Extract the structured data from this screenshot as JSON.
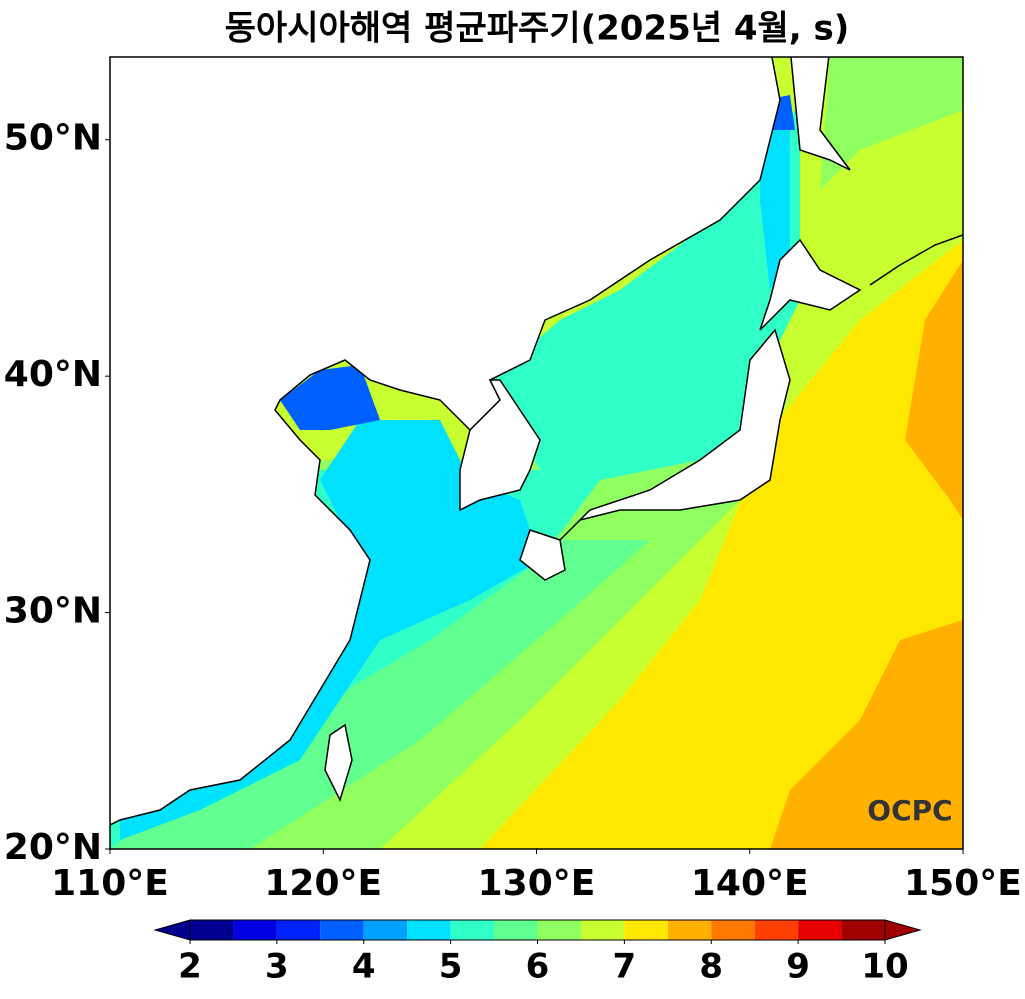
{
  "chart_data": {
    "type": "contourf",
    "title": "동아시아해역 평균파주기(2025년 4월, s)",
    "xlim": [
      110,
      150
    ],
    "ylim": [
      20,
      53.5
    ],
    "xticks": [
      {
        "value": 110,
        "label": "110°E"
      },
      {
        "value": 120,
        "label": "120°E"
      },
      {
        "value": 130,
        "label": "130°E"
      },
      {
        "value": 140,
        "label": "140°E"
      },
      {
        "value": 150,
        "label": "150°E"
      }
    ],
    "yticks": [
      {
        "value": 20,
        "label": "20°N"
      },
      {
        "value": 30,
        "label": "30°N"
      },
      {
        "value": 40,
        "label": "40°N"
      },
      {
        "value": 50,
        "label": "50°N"
      }
    ],
    "colorbar": {
      "levels": [
        2,
        2.5,
        3,
        3.5,
        4,
        4.5,
        5,
        5.5,
        6,
        6.5,
        7,
        7.5,
        8,
        8.5,
        9,
        9.5,
        10
      ],
      "colors": [
        "#000090",
        "#0000e0",
        "#0022ff",
        "#0060ff",
        "#00a0ff",
        "#00e0ff",
        "#30ffc8",
        "#60ff90",
        "#90ff60",
        "#c8ff30",
        "#ffe800",
        "#ffb000",
        "#ff7800",
        "#ff4000",
        "#e80000",
        "#a00000"
      ],
      "ticks": [
        2,
        3,
        4,
        5,
        6,
        7,
        8,
        9,
        10
      ],
      "extend": "both"
    },
    "watermark": "OCPC"
  }
}
